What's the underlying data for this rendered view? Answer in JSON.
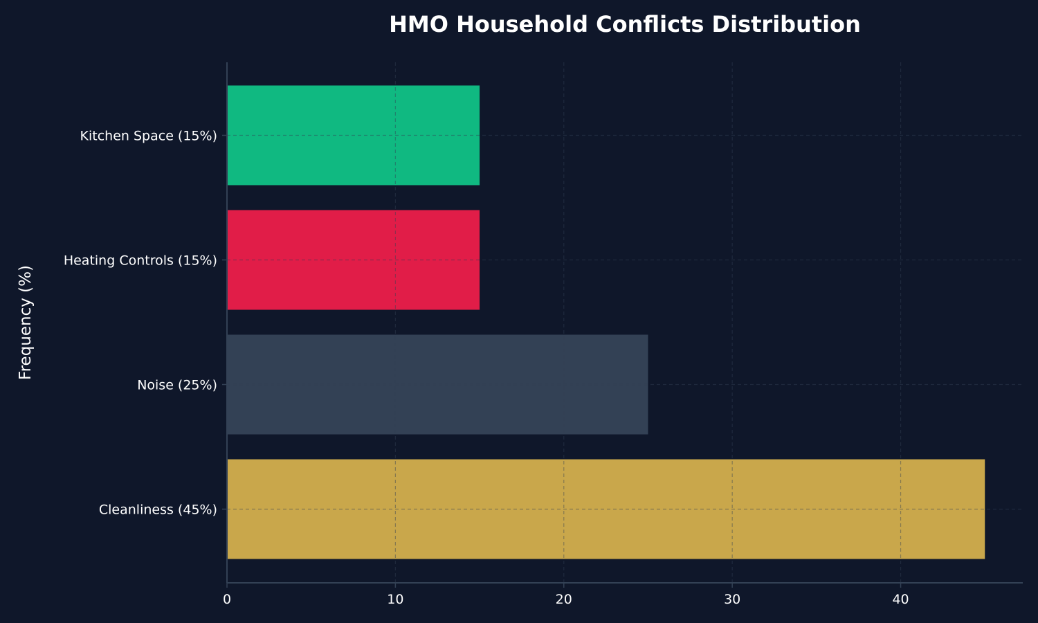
{
  "chart_data": {
    "type": "bar",
    "orientation": "horizontal",
    "title": "HMO Household Conflicts Distribution",
    "xlabel": "",
    "ylabel": "Frequency (%)",
    "categories": [
      "Cleanliness (45%)",
      "Noise (25%)",
      "Heating Controls (15%)",
      "Kitchen Space (15%)"
    ],
    "values": [
      45,
      25,
      15,
      15
    ],
    "colors": [
      "#c9a74b",
      "#334155",
      "#e11d48",
      "#10b981"
    ],
    "xlim": [
      0,
      47.25
    ],
    "xticks": [
      0,
      10,
      20,
      30,
      40
    ],
    "grid": true
  },
  "style": {
    "background": "#0f172a",
    "text_color": "#ffffff",
    "axis_color": "#334155",
    "grid_color": "#334155"
  }
}
